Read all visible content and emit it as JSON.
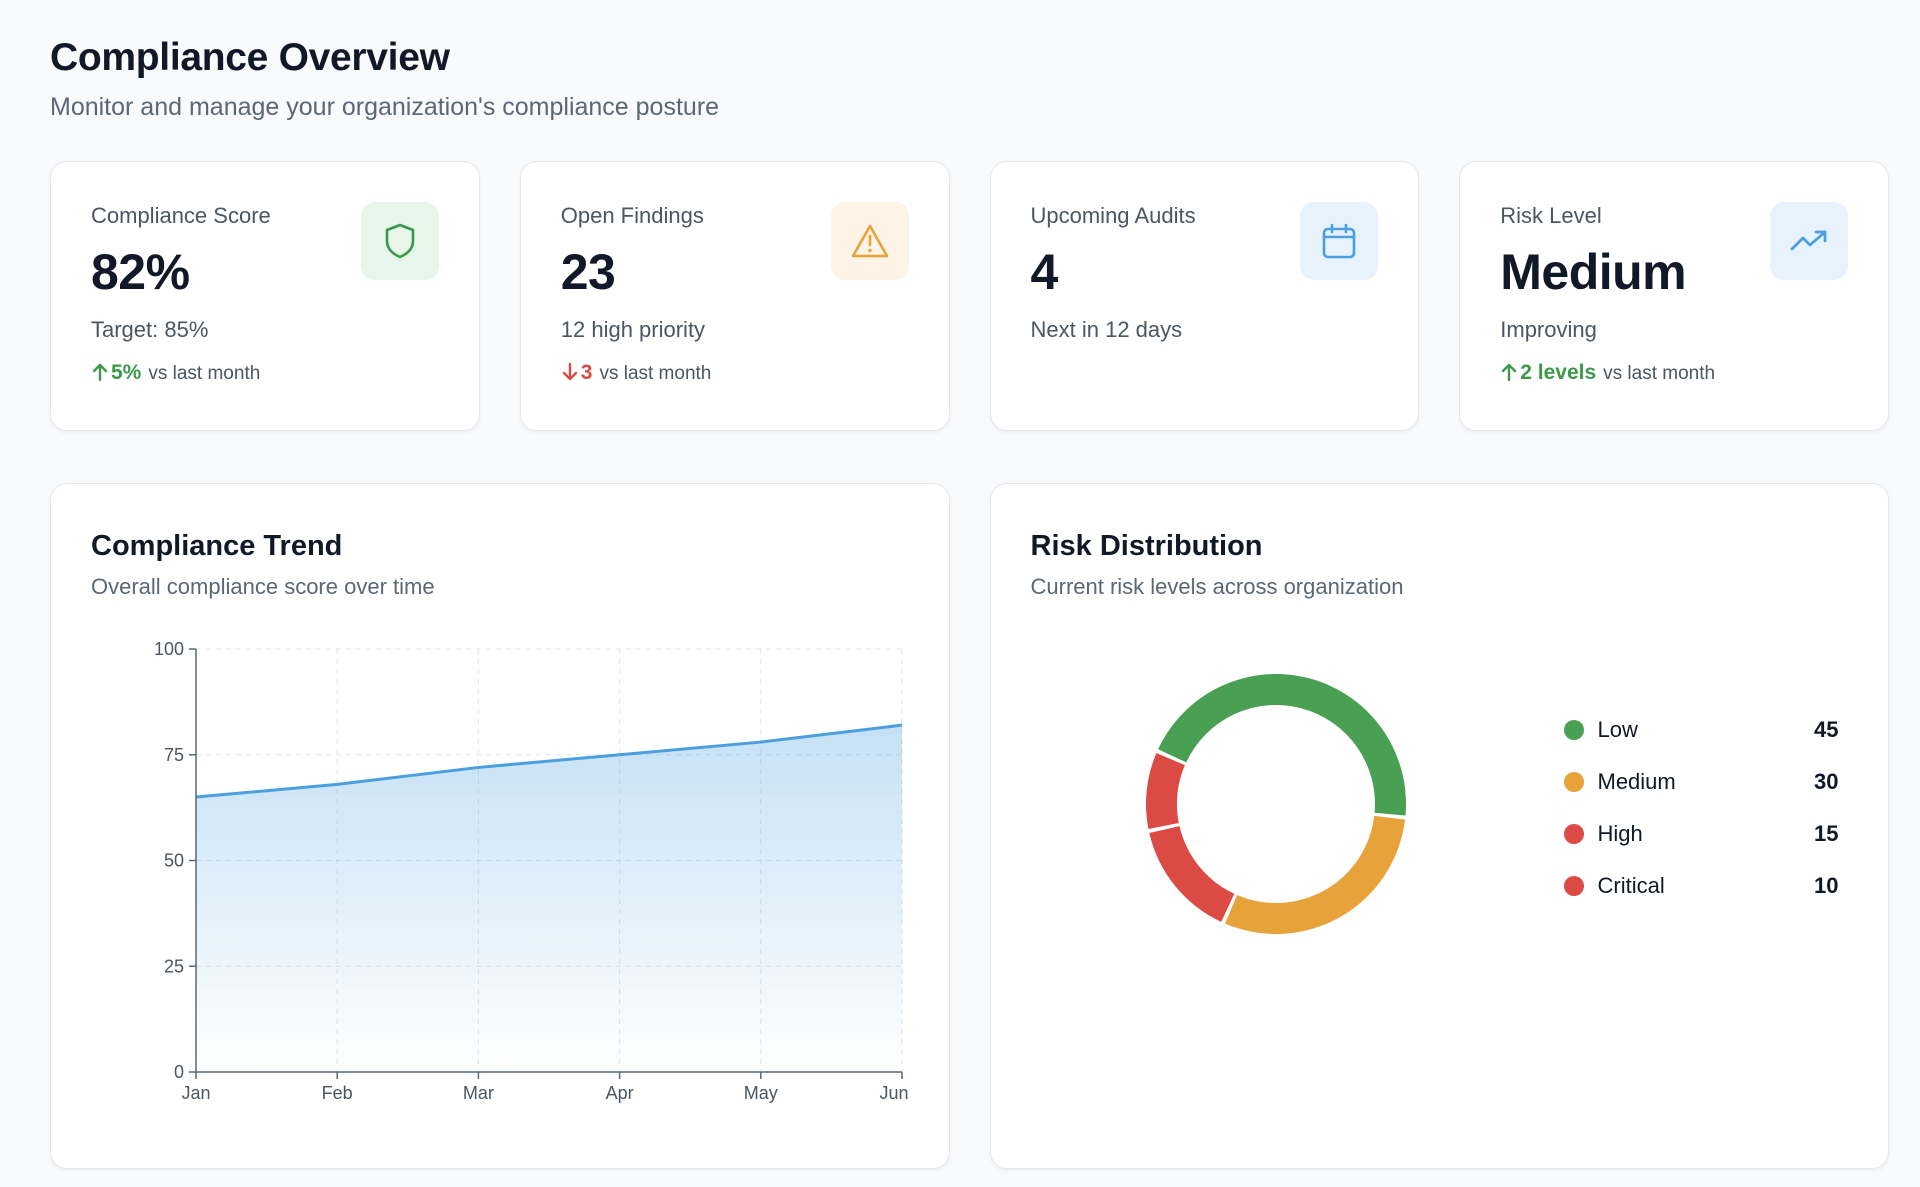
{
  "header": {
    "title": "Compliance Overview",
    "subtitle": "Monitor and manage your organization's compliance posture"
  },
  "stats": [
    {
      "label": "Compliance Score",
      "value": "82%",
      "sub": "Target: 85%",
      "delta": "5%",
      "delta_dir": "up",
      "delta_suffix": "vs last month",
      "icon": "shield-icon",
      "color": "#3a9a4a"
    },
    {
      "label": "Open Findings",
      "value": "23",
      "sub": "12 high priority",
      "delta": "3",
      "delta_dir": "down",
      "delta_suffix": "vs last month",
      "icon": "warning-triangle-icon",
      "color": "#e8a23a"
    },
    {
      "label": "Upcoming Audits",
      "value": "4",
      "sub": "Next in 12 days",
      "icon": "calendar-icon",
      "color": "#4a9fe0"
    },
    {
      "label": "Risk Level",
      "value": "Medium",
      "sub": "Improving",
      "delta": "2 levels",
      "delta_dir": "up",
      "delta_suffix": "vs last month",
      "icon": "trending-up-icon",
      "color": "#4a9fe0"
    }
  ],
  "trend": {
    "title": "Compliance Trend",
    "subtitle": "Overall compliance score over time"
  },
  "risk": {
    "title": "Risk Distribution",
    "subtitle": "Current risk levels across organization"
  },
  "colors": {
    "line": "#4a9fe0",
    "low": "#4aa052",
    "medium": "#e8a23a",
    "high": "#dc4a45",
    "critical": "#dc4a45"
  },
  "chart_data": [
    {
      "type": "area",
      "categories": [
        "Jan",
        "Feb",
        "Mar",
        "Apr",
        "May",
        "Jun"
      ],
      "values": [
        65,
        68,
        72,
        75,
        78,
        82
      ],
      "ylim": [
        0,
        100
      ],
      "yticks": [
        0,
        25,
        50,
        75,
        100
      ],
      "grid": true
    },
    {
      "type": "pie",
      "categories": [
        "Low",
        "Medium",
        "High",
        "Critical"
      ],
      "values": [
        45,
        30,
        15,
        10
      ],
      "donut": true,
      "legend_position": "right"
    }
  ]
}
